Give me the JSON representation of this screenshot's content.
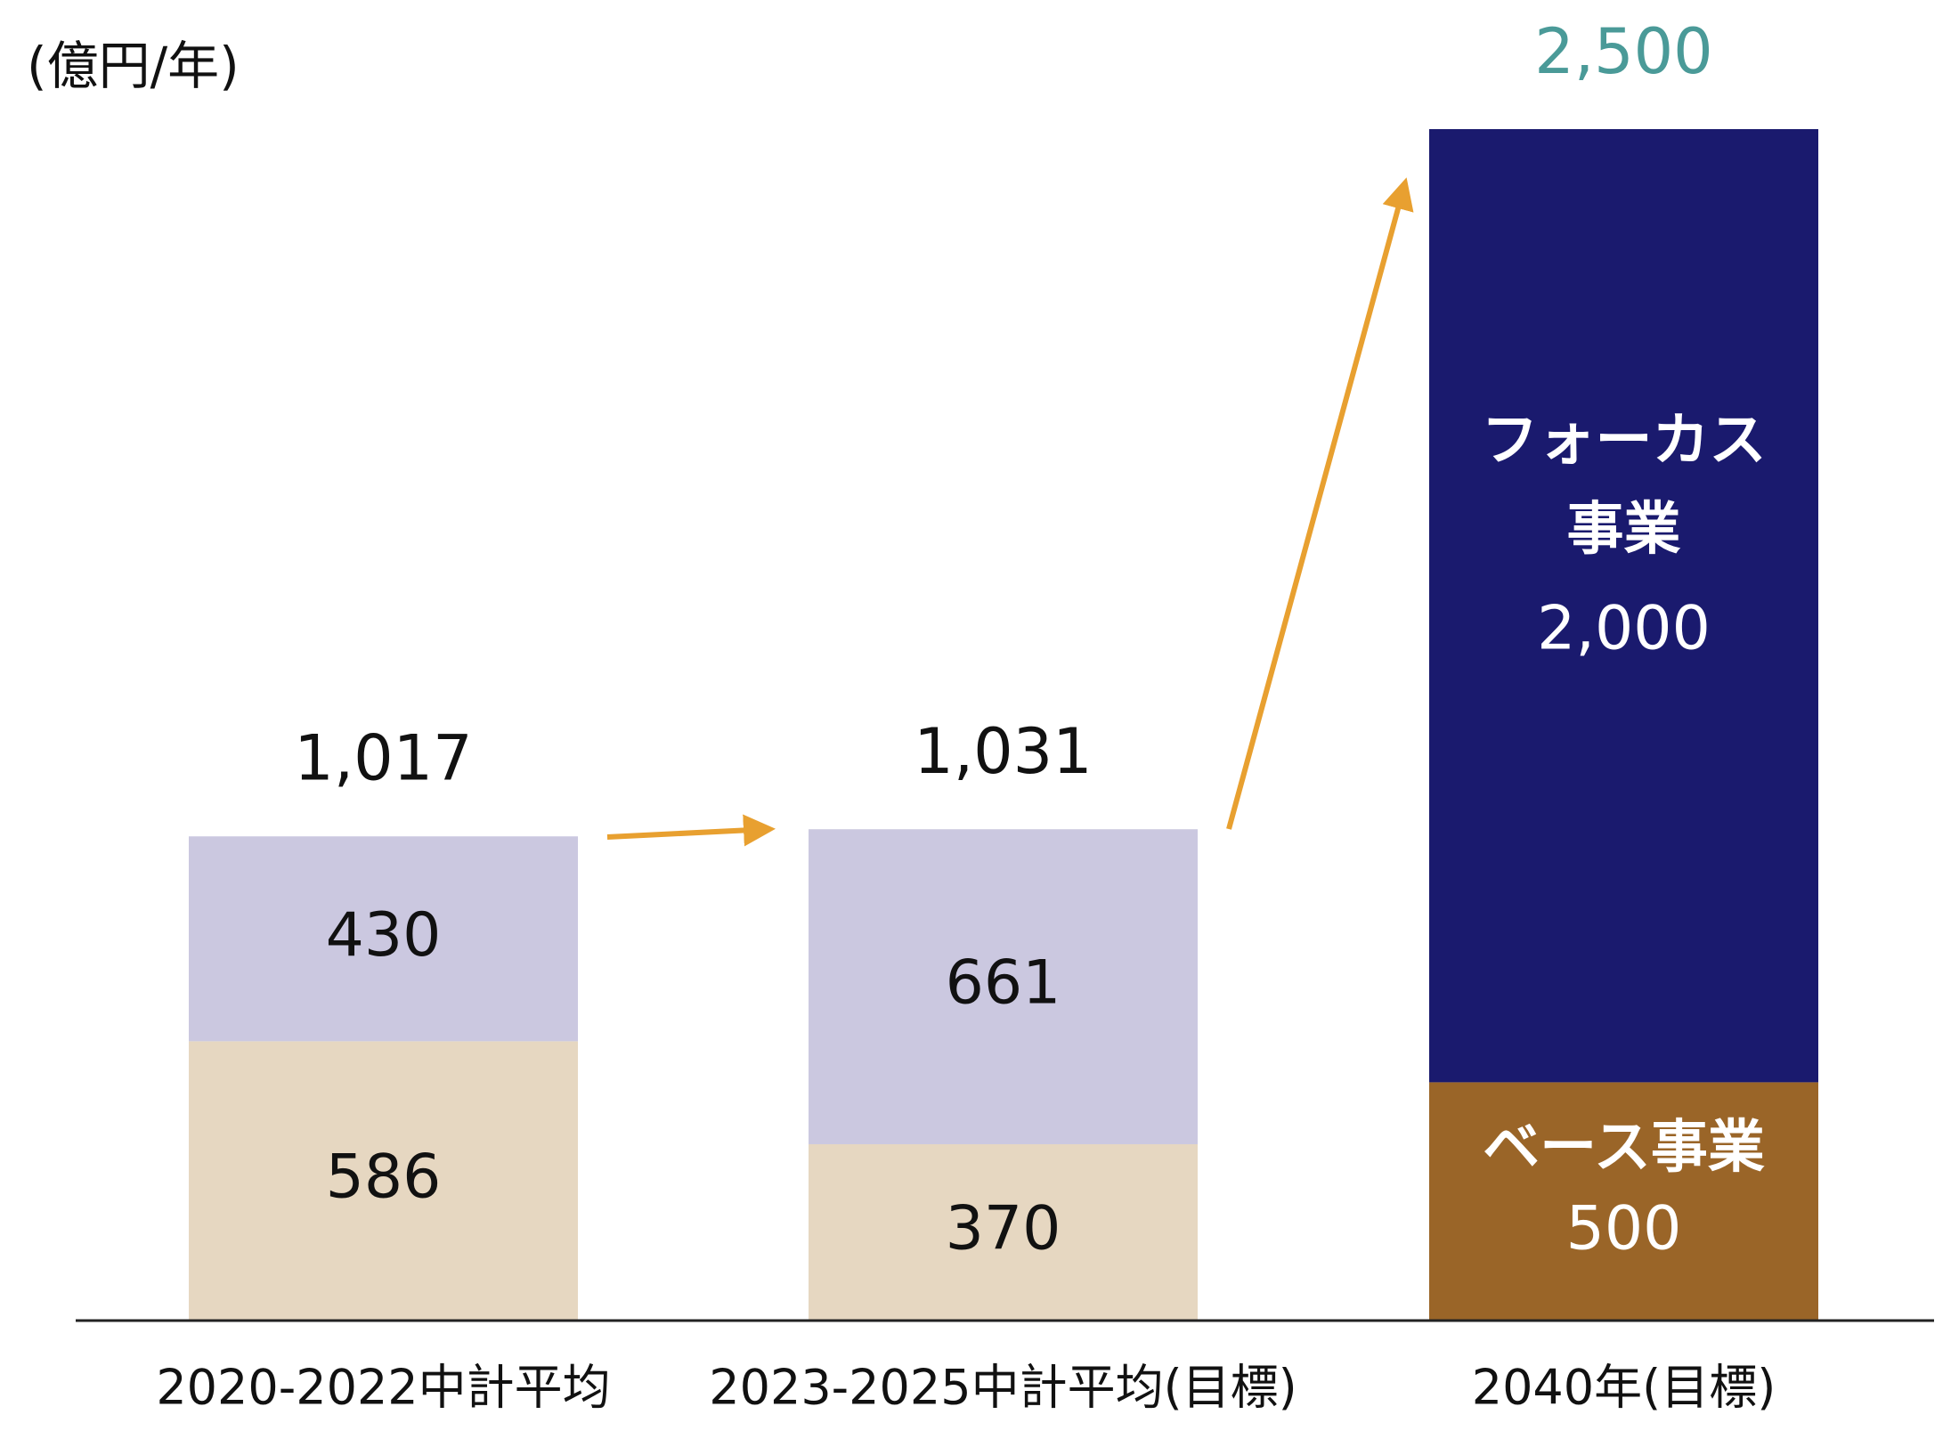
{
  "chart_data": {
    "type": "stacked-bar",
    "unit_label": "(億円/年)",
    "categories": [
      "2020-2022中計平均",
      "2023-2025中計平均(目標)",
      "2040年(目標)"
    ],
    "series": [
      {
        "name": "ベース事業",
        "colors": [
          "#e6d7c1",
          "#e6d7c1",
          "#9a6528"
        ],
        "values": [
          586,
          370,
          500
        ]
      },
      {
        "name": "フォーカス事業",
        "colors": [
          "#cbc8e0",
          "#cbc8e0",
          "#1a1a6e"
        ],
        "values": [
          430,
          661,
          2000
        ],
        "value_labels": [
          "430",
          "661",
          "2,000"
        ]
      }
    ],
    "totals": [
      1017,
      1031,
      2500
    ],
    "total_labels": [
      "1,017",
      "1,031",
      "2,500"
    ],
    "total_colors": [
      "#111111",
      "#111111",
      "#4a9a98"
    ],
    "ylim": [
      0,
      2500
    ]
  }
}
